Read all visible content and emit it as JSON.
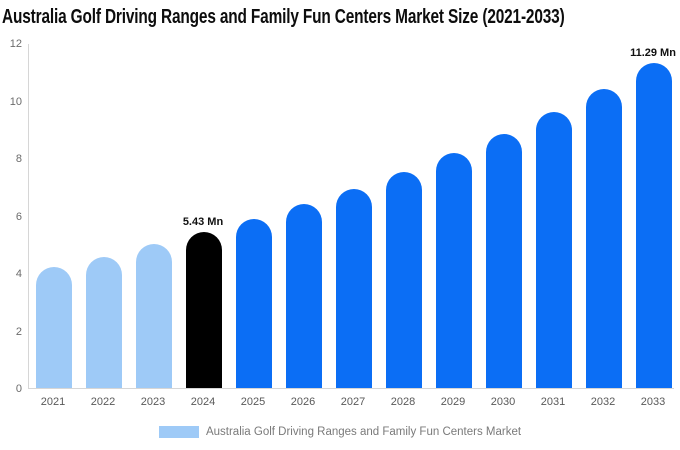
{
  "chart_data": {
    "type": "bar",
    "title": "Australia Golf Driving Ranges and Family Fun Centers Market Size (2021-2033)",
    "unit": "Mn",
    "categories": [
      "2021",
      "2022",
      "2023",
      "2024",
      "2025",
      "2026",
      "2027",
      "2028",
      "2029",
      "2030",
      "2031",
      "2032",
      "2033"
    ],
    "values": [
      4.2,
      4.55,
      5.0,
      5.43,
      5.89,
      6.39,
      6.93,
      7.52,
      8.16,
      8.85,
      9.6,
      10.41,
      11.29
    ],
    "point_labels": [
      "",
      "",
      "",
      "5.43 Mn",
      "",
      "",
      "",
      "",
      "",
      "",
      "",
      "",
      "11.29 Mn"
    ],
    "bar_roles": [
      "past",
      "past",
      "past",
      "current",
      "forecast",
      "forecast",
      "forecast",
      "forecast",
      "forecast",
      "forecast",
      "forecast",
      "forecast",
      "forecast"
    ],
    "colors": {
      "past": "#9ecaf7",
      "current": "#000000",
      "forecast": "#0b6ef5"
    },
    "ylim": [
      0,
      12
    ],
    "yticks": [
      0,
      2,
      4,
      6,
      8,
      10,
      12
    ],
    "grid": false,
    "xlabel": "",
    "ylabel": "",
    "legend": {
      "position": "bottom-center",
      "items": [
        {
          "label": "Australia Golf Driving Ranges and Family Fun Centers Market",
          "color": "#9ecaf7"
        }
      ]
    }
  }
}
